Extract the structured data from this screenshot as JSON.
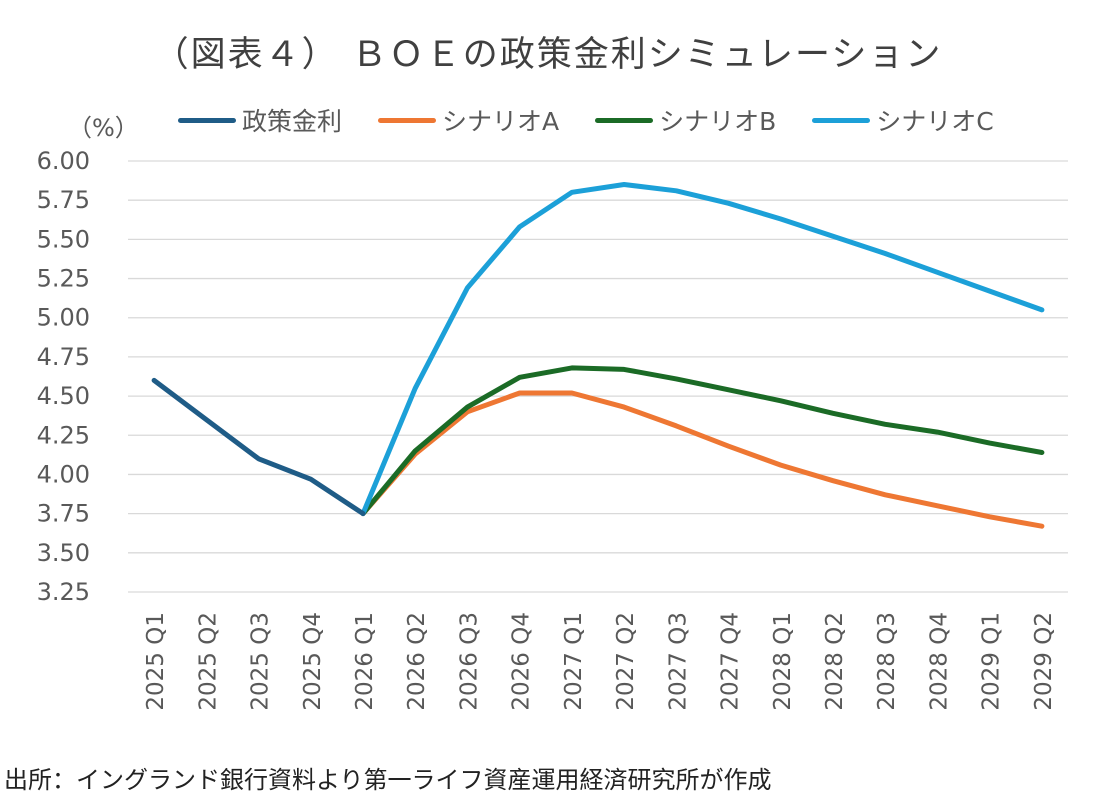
{
  "title": "（図表４） ＢＯＥの政策金利シミュレーション",
  "source": "出所：イングランド銀行資料より第一ライフ資産運用経済研究所が作成",
  "chart_data": {
    "type": "line",
    "unit_label": "（%）",
    "ylim": [
      3.25,
      6.0
    ],
    "yticks": [
      "6.00",
      "5.75",
      "5.50",
      "5.25",
      "5.00",
      "4.75",
      "4.50",
      "4.25",
      "4.00",
      "3.75",
      "3.50",
      "3.25"
    ],
    "grid": true,
    "legend_position": "top",
    "categories": [
      "2025 Q1",
      "2025 Q2",
      "2025 Q3",
      "2025 Q4",
      "2026 Q1",
      "2026 Q2",
      "2026 Q3",
      "2026 Q4",
      "2027 Q1",
      "2027 Q2",
      "2027 Q3",
      "2027 Q4",
      "2028 Q1",
      "2028 Q2",
      "2028 Q3",
      "2028 Q4",
      "2029 Q1",
      "2029 Q2"
    ],
    "series": [
      {
        "name": "政策金利",
        "color": "#1f5c87",
        "values": [
          4.6,
          4.35,
          4.1,
          3.97,
          3.75,
          null,
          null,
          null,
          null,
          null,
          null,
          null,
          null,
          null,
          null,
          null,
          null,
          null
        ]
      },
      {
        "name": "シナリオA",
        "color": "#ee7733",
        "values": [
          null,
          null,
          null,
          null,
          3.75,
          4.13,
          4.4,
          4.52,
          4.52,
          4.43,
          4.31,
          4.18,
          4.06,
          3.96,
          3.87,
          3.8,
          3.73,
          3.67
        ]
      },
      {
        "name": "シナリオB",
        "color": "#1b6b26",
        "values": [
          null,
          null,
          null,
          null,
          3.75,
          4.15,
          4.43,
          4.62,
          4.68,
          4.67,
          4.61,
          4.54,
          4.47,
          4.39,
          4.32,
          4.27,
          4.2,
          4.14
        ]
      },
      {
        "name": "シナリオC",
        "color": "#1ca0d8",
        "values": [
          null,
          null,
          null,
          null,
          3.75,
          4.55,
          5.19,
          5.58,
          5.8,
          5.85,
          5.81,
          5.73,
          5.63,
          5.52,
          5.41,
          5.29,
          5.17,
          5.05
        ]
      }
    ]
  }
}
